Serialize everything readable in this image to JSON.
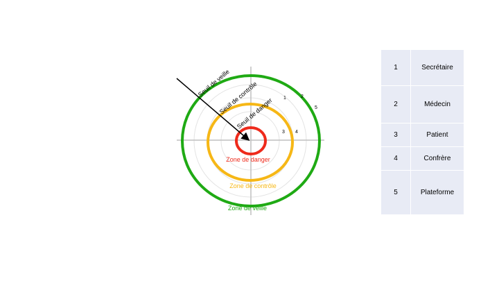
{
  "diagram": {
    "threshold_labels": {
      "veille": "Seuil de veille",
      "controle": "Seuil de contrôle",
      "danger": "Seuil de danger"
    },
    "zones": {
      "danger": {
        "label": "Zone de danger",
        "color": "#ee2a1b"
      },
      "controle": {
        "label": "Zone de contrôle",
        "color": "#f6b716"
      },
      "veille": {
        "label": "Zone de veille",
        "color": "#1faa14"
      }
    },
    "ring_numbers": [
      "1",
      "2",
      "3",
      "4",
      "5"
    ]
  },
  "legend": {
    "rows": [
      {
        "number": "1",
        "label": "Secrétaire"
      },
      {
        "number": "2",
        "label": "Médecin"
      },
      {
        "number": "3",
        "label": "Patient"
      },
      {
        "number": "4",
        "label": "Confrère"
      },
      {
        "number": "5",
        "label": "Plateforme"
      }
    ]
  }
}
